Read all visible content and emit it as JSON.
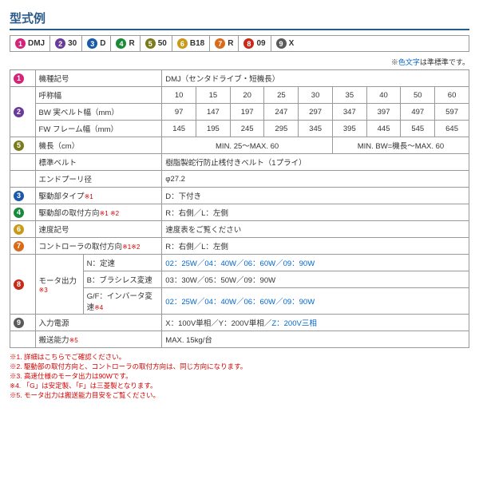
{
  "title": "型式例",
  "badges": [
    {
      "n": "1",
      "c": "#d6237a",
      "t": "DMJ"
    },
    {
      "n": "2",
      "c": "#6a3a9a",
      "t": "30"
    },
    {
      "n": "3",
      "c": "#1a5aa8",
      "t": "D"
    },
    {
      "n": "4",
      "c": "#1a8a3a",
      "t": "R"
    },
    {
      "n": "5",
      "c": "#7a7a1a",
      "t": "50"
    },
    {
      "n": "6",
      "c": "#c89a1a",
      "t": "B18"
    },
    {
      "n": "7",
      "c": "#d86a1a",
      "t": "R"
    },
    {
      "n": "8",
      "c": "#c82a1a",
      "t": "09"
    },
    {
      "n": "9",
      "c": "#5a5a5a",
      "t": "X"
    }
  ],
  "note_right_pre": "※",
  "note_right_blue": "色文字",
  "note_right_post": "は準標準です。",
  "rows": {
    "r1_lbl": "機種記号",
    "r1_val": "DMJ（センタドライブ・短機長）",
    "r2_lbl": "呼称幅",
    "r2_vals": [
      "10",
      "15",
      "20",
      "25",
      "30",
      "35",
      "40",
      "50",
      "60"
    ],
    "r3_lbl": "BW 実ベルト幅（mm）",
    "r3_vals": [
      "97",
      "147",
      "197",
      "247",
      "297",
      "347",
      "397",
      "497",
      "597"
    ],
    "r4_lbl": "FW フレーム幅（mm）",
    "r4_vals": [
      "145",
      "195",
      "245",
      "295",
      "345",
      "395",
      "445",
      "545",
      "645"
    ],
    "r5_lbl": "機長（cm）",
    "r5_val1": "MIN. 25～MAX. 60",
    "r5_val2": "MIN. BW=機長～MAX. 60",
    "r6_lbl": "標準ベルト",
    "r6_val": "樹脂製蛇行防止桟付きベルト（1プライ）",
    "r7_lbl": "エンドプーリ径",
    "r7_val": "φ27.2",
    "r8_lbl": "駆動部タイプ",
    "r8_ref": "※1",
    "r8_val": "D：下付き",
    "r9_lbl": "駆動部の取付方向",
    "r9_ref": "※1 ※2",
    "r9_val": "R：右側／L：左側",
    "r10_lbl": "速度記号",
    "r10_val": "速度表をご覧ください",
    "r11_lbl": "コントローラの取付方向",
    "r11_ref": "※1※2",
    "r11_val": "R：右側／L：左側",
    "r12_lbl": "モータ出力",
    "r12_ref": "※3",
    "r12_a_lbl": "N：定速",
    "r12_a_val": "02：25W／04：40W／06：60W／09：90W",
    "r12_b_lbl": "B：ブラシレス変速",
    "r12_b_val": "03：30W／05：50W／09：90W",
    "r12_c_lbl": "G/F：インバータ変速",
    "r12_c_ref": "※4",
    "r12_c_val": "02：25W／04：40W／06：60W／09：90W",
    "r13_lbl": "入力電源",
    "r13_val_a": "X：100V単相／Y：200V単相／",
    "r13_val_b": "Z：200V三相",
    "r14_lbl": "搬送能力",
    "r14_ref": "※5",
    "r14_val": "MAX. 15kg/台"
  },
  "footnotes": [
    "※1. 詳細はこちらでご確認ください。",
    "※2. 駆動部の取付方向と、コントローラの取付方向は、同じ方向になります。",
    "※3. 高速仕様のモータ出力は90Wです。",
    "※4. 「G」は安定製、「F」は三菱製となります。",
    "※5. モータ出力は搬送能力目安をご覧ください。"
  ]
}
